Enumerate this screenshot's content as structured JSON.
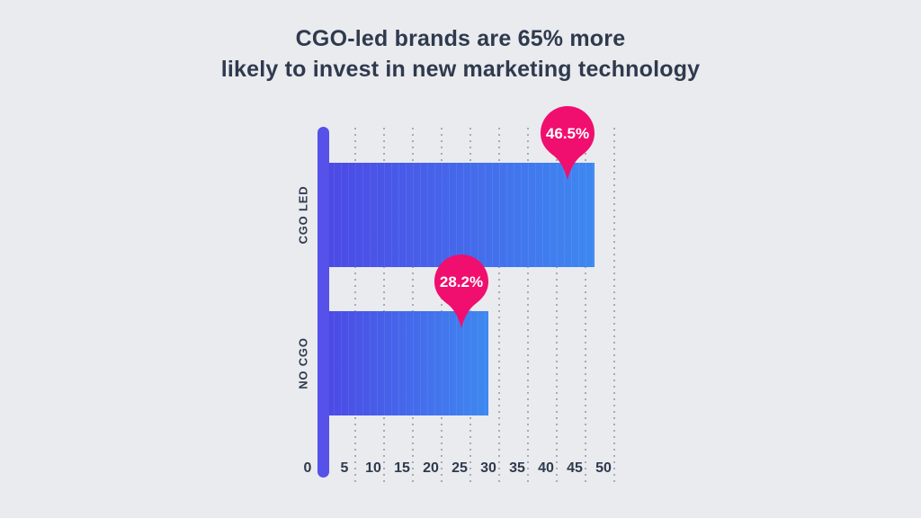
{
  "title": {
    "line1": "CGO-led brands are 65% more",
    "line2": "likely to invest in new marketing technology"
  },
  "chart_data": {
    "type": "bar",
    "orientation": "horizontal",
    "title": "CGO-led brands are 65% more likely to invest in new marketing technology",
    "categories": [
      "CGO LED",
      "NO CGO"
    ],
    "values": [
      46.5,
      28.2
    ],
    "value_labels": [
      "46.5%",
      "28.2%"
    ],
    "xlabel": "",
    "ylabel": "",
    "xlim": [
      0,
      50
    ],
    "x_ticks": [
      0,
      5,
      10,
      15,
      20,
      25,
      30,
      35,
      40,
      45,
      50
    ],
    "grid": "dotted-vertical",
    "legend": "none",
    "colors": {
      "background": "#e9ebee",
      "title_text": "#2f3a4e",
      "axis_line": "#5551e9",
      "bar_gradient_start": "#4c49e5",
      "bar_gradient_end": "#3e88f0",
      "marker": "#f00e6e",
      "marker_text": "#ffffff",
      "gridline": "#9aa0ab",
      "tick_text": "#2f3a4e"
    }
  }
}
